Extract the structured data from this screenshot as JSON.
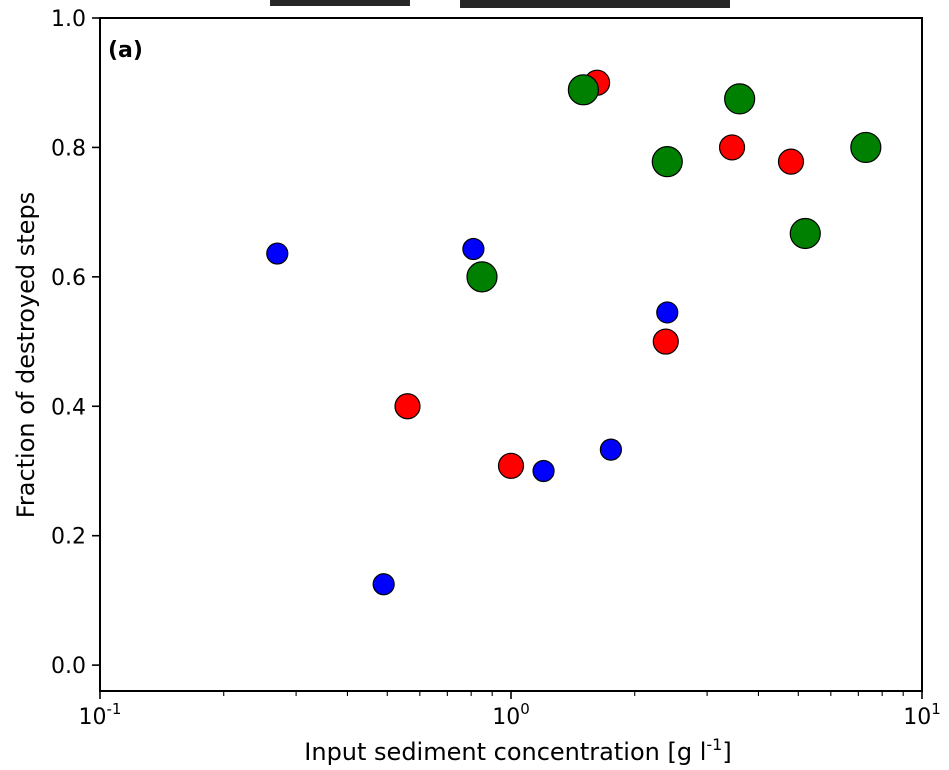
{
  "chart_data": {
    "type": "scatter",
    "title": "",
    "panel_label": "(a)",
    "xlabel": "Input sediment concentration [g l",
    "xlabel_sup": "-1",
    "xlabel_close": "]",
    "ylabel": "Fraction of destroyed steps",
    "x_scale": "log",
    "xlim": [
      0.1,
      10
    ],
    "ylim": [
      -0.04,
      1.0
    ],
    "x_ticks": [
      {
        "base": "10",
        "exp": "-1",
        "value": 0.1
      },
      {
        "base": "10",
        "exp": "0",
        "value": 1
      },
      {
        "base": "10",
        "exp": "1",
        "value": 10
      }
    ],
    "y_ticks": [
      "0.0",
      "0.2",
      "0.4",
      "0.6",
      "0.8",
      "1.0"
    ],
    "y_tick_values": [
      0.0,
      0.2,
      0.4,
      0.6,
      0.8,
      1.0
    ],
    "legend": "none",
    "grid": false,
    "series": [
      {
        "color": "#0000ff",
        "marker_size": "small",
        "points": [
          {
            "x": 0.27,
            "y": 0.636
          },
          {
            "x": 0.49,
            "y": 0.125
          },
          {
            "x": 0.81,
            "y": 0.643
          },
          {
            "x": 1.2,
            "y": 0.3
          },
          {
            "x": 1.75,
            "y": 0.333
          },
          {
            "x": 2.4,
            "y": 0.545
          }
        ]
      },
      {
        "color": "#ff0000",
        "marker_size": "medium",
        "points": [
          {
            "x": 0.56,
            "y": 0.4
          },
          {
            "x": 1.0,
            "y": 0.308
          },
          {
            "x": 1.62,
            "y": 0.9
          },
          {
            "x": 2.38,
            "y": 0.5
          },
          {
            "x": 3.45,
            "y": 0.8
          },
          {
            "x": 4.8,
            "y": 0.778
          }
        ]
      },
      {
        "color": "#008000",
        "marker_size": "large",
        "points": [
          {
            "x": 0.85,
            "y": 0.6
          },
          {
            "x": 1.5,
            "y": 0.889
          },
          {
            "x": 2.4,
            "y": 0.778
          },
          {
            "x": 3.6,
            "y": 0.875
          },
          {
            "x": 5.2,
            "y": 0.667
          },
          {
            "x": 7.3,
            "y": 0.8
          }
        ]
      }
    ]
  }
}
